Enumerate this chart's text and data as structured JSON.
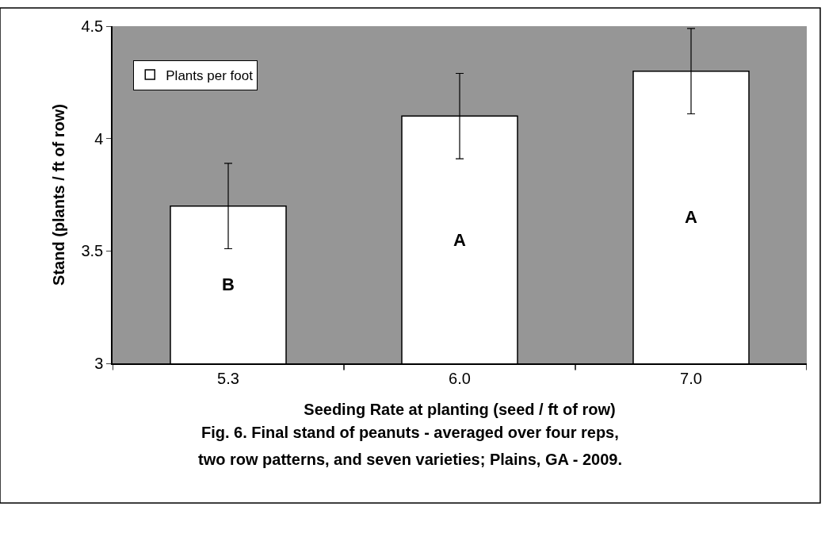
{
  "chart_data": {
    "type": "bar",
    "categories": [
      "5.3",
      "6.0",
      "7.0"
    ],
    "series": [
      {
        "name": "Plants per foot",
        "color": "#ffffff",
        "values": [
          3.7,
          4.1,
          4.3
        ],
        "errors": [
          0.19,
          0.19,
          0.19
        ]
      }
    ],
    "xlabel": "Seeding Rate at planting (seed / ft of row)",
    "ylabel": "Stand (plants / ft of row)",
    "ylim": [
      3,
      4.5
    ],
    "yticks": [
      3,
      3.5,
      4,
      4.5
    ],
    "grid": false,
    "legend": "top left",
    "annotations": [
      "B",
      "A",
      "A",
      "Fig. 6. Final stand of peanuts - averaged over four reps,",
      "two row patterns, and seven varieties; Plains, GA - 2009."
    ]
  }
}
